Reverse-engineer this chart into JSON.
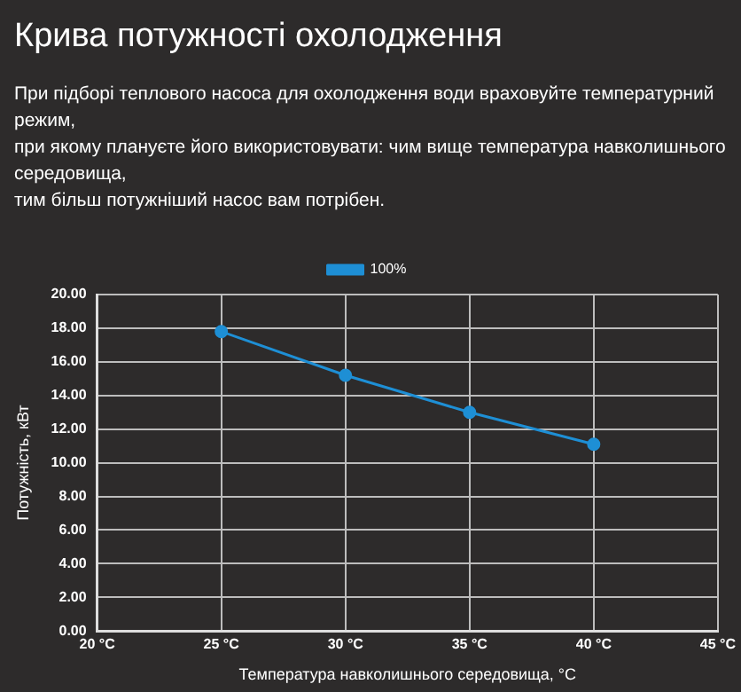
{
  "chart_data": {
    "type": "line",
    "title": "Крива потужності охолодження",
    "subtitle": "При підборі теплового насоса для охолодження води враховуйте температурний режим,\nпри якому плануєте його використовувати: чим вище температура навколишнього\nсередовища,\nтим більш потужніший насос вам потрібен.",
    "xlabel": "Температура навколишнього середовища, °C",
    "ylabel": "Потужність, кВт",
    "x": [
      25,
      30,
      35,
      40
    ],
    "series": [
      {
        "name": "100%",
        "color": "#1e8fd5",
        "values": [
          17.8,
          15.2,
          13.0,
          11.1
        ]
      }
    ],
    "xlim": [
      20,
      45
    ],
    "xticks": [
      {
        "value": 20,
        "label": "20 °C"
      },
      {
        "value": 25,
        "label": "25 °C"
      },
      {
        "value": 30,
        "label": "30 °C"
      },
      {
        "value": 35,
        "label": "35 °C"
      },
      {
        "value": 40,
        "label": "40 °C"
      },
      {
        "value": 45,
        "label": "45 °C"
      }
    ],
    "ylim": [
      0,
      20
    ],
    "yticks": [
      {
        "value": 0,
        "label": "0.00"
      },
      {
        "value": 2,
        "label": "2.00"
      },
      {
        "value": 4,
        "label": "4.00"
      },
      {
        "value": 6,
        "label": "6.00"
      },
      {
        "value": 8,
        "label": "8.00"
      },
      {
        "value": 10,
        "label": "10.00"
      },
      {
        "value": 12,
        "label": "12.00"
      },
      {
        "value": 14,
        "label": "14.00"
      },
      {
        "value": 16,
        "label": "16.00"
      },
      {
        "value": 18,
        "label": "18.00"
      },
      {
        "value": 20,
        "label": "20.00"
      }
    ],
    "grid": true,
    "legend": "top",
    "marker": "circle",
    "line_style": "solid"
  }
}
